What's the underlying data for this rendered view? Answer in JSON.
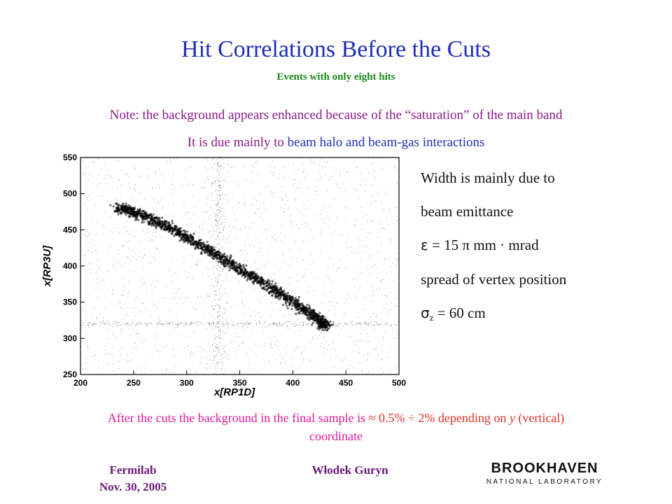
{
  "header": {
    "title": "Hit Correlations  Before the Cuts",
    "subtitle": "Events with only eight hits"
  },
  "notes": {
    "note1": "Note: the background appears enhanced because of the “saturation” of the main band",
    "note2_prefix": "It is due mainly to ",
    "note2_highlight": "beam halo and beam-gas interactions"
  },
  "side_text": {
    "line1": "Width is mainly due to",
    "line2": "beam emittance",
    "line3_symbol": "ε",
    "line3_rest": " = 15 π mm · mrad",
    "line4": "spread of vertex position",
    "line5_symbol": "σ",
    "line5_sub": "z",
    "line5_rest": " = 60 cm"
  },
  "bottom_text": {
    "part1": "After the cuts the background in the final sample is ",
    "part2": " ≈ 0.5% ÷ 2% depending  on ",
    "y": "y",
    "part3": " (vertical)",
    "part4": "coordinate"
  },
  "footer": {
    "left_line1": "Fermilab",
    "left_line2": "Nov. 30, 2005",
    "center": "Włodek Guryn",
    "logo_line1": "BROOKHAVEN",
    "logo_line2": "NATIONAL LABORATORY"
  },
  "colors": {
    "title": "#1f2fb4",
    "subtitle": "#1b8a1b",
    "note": "#8a1a8a",
    "bottom": "#e0199a",
    "footer": "#6a197a"
  },
  "chart_data": {
    "type": "scatter",
    "title": "",
    "xlabel": "x[RP1D]",
    "ylabel": "x[RP3U]",
    "xlim": [
      200,
      500
    ],
    "ylim": [
      250,
      550
    ],
    "xticks": [
      200,
      250,
      300,
      350,
      400,
      450,
      500
    ],
    "yticks": [
      250,
      300,
      350,
      400,
      450,
      500,
      550
    ],
    "main_band": {
      "x": [
        235,
        250,
        270,
        290,
        310,
        330,
        350,
        370,
        390,
        410,
        425,
        432
      ],
      "y": [
        480,
        475,
        462,
        448,
        431,
        414,
        396,
        378,
        360,
        341,
        325,
        316
      ]
    },
    "vertical_background_band_x": 330,
    "horizontal_background_band_y": 320,
    "grid": false
  }
}
